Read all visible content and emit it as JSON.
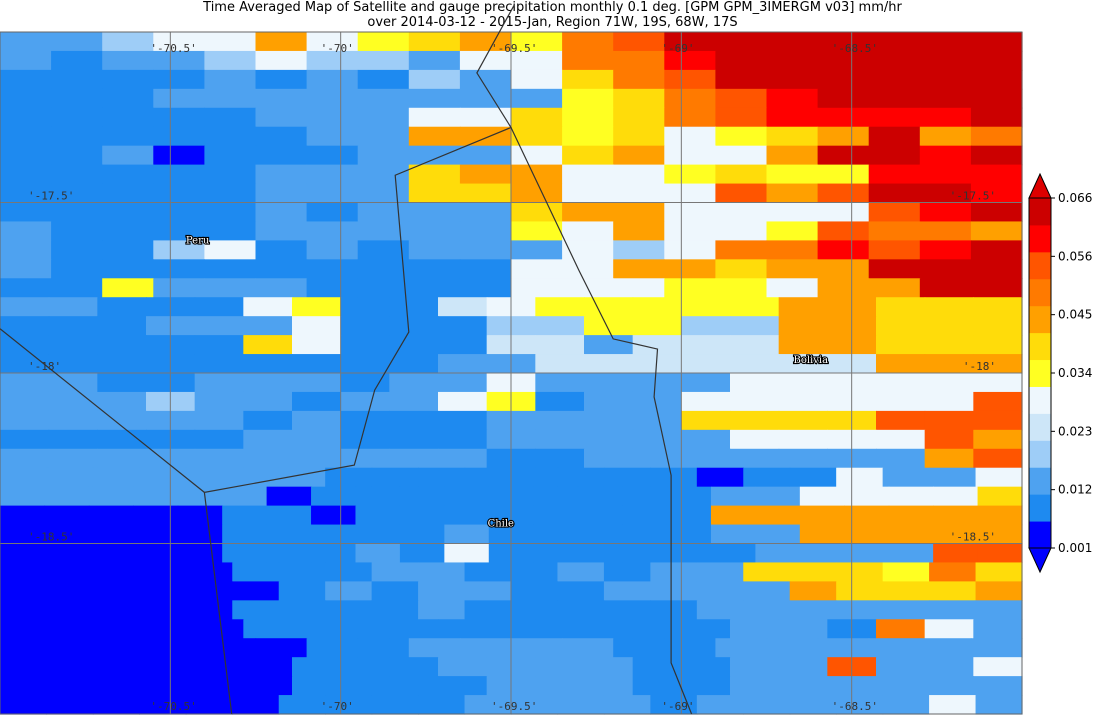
{
  "title_line1": "Time Averaged Map of Satellite and gauge precipitation monthly 0.1 deg. [GPM GPM_3IMERGM v03] mm/hr",
  "title_line2": "over 2014-03-12 - 2015-Jan, Region 71W, 19S, 68W, 17S",
  "map": {
    "extent": {
      "lon_min": -71.0,
      "lon_max": -68.0,
      "lat_min": -19.0,
      "lat_max": -17.0
    },
    "grid_lons": [
      -70.5,
      -70,
      -69.5,
      -69,
      -68.5
    ],
    "grid_lats": [
      -17.5,
      -18,
      -18.5
    ],
    "lon_labels": [
      "'-70.5'",
      "'-70'",
      "'-69.5'",
      "'-69'",
      "'-68.5'"
    ],
    "lat_labels": [
      "'-17.5'",
      "'-18'",
      "'-18.5'"
    ],
    "countries": [
      {
        "name": "Peru",
        "lon": -70.42,
        "lat": -17.62
      },
      {
        "name": "Bolivia",
        "lon": -68.62,
        "lat": -17.97
      },
      {
        "name": "Chile",
        "lon": -69.53,
        "lat": -18.45
      }
    ],
    "borders": [
      [
        [
          -69.49,
          -16.92
        ],
        [
          -69.6,
          -17.12
        ],
        [
          -69.5,
          -17.28
        ],
        [
          -69.84,
          -17.42
        ],
        [
          -69.8,
          -17.88
        ],
        [
          -69.9,
          -18.05
        ],
        [
          -69.96,
          -18.27
        ],
        [
          -70.4,
          -18.35
        ],
        [
          -70.32,
          -19.0
        ]
      ],
      [
        [
          -69.5,
          -17.28
        ],
        [
          -69.3,
          -17.7
        ],
        [
          -69.2,
          -17.9
        ],
        [
          -69.07,
          -17.93
        ],
        [
          -69.08,
          -18.07
        ],
        [
          -69.03,
          -18.3
        ],
        [
          -69.03,
          -18.85
        ],
        [
          -68.97,
          -19.0
        ]
      ],
      [
        [
          -71.0,
          -17.87
        ],
        [
          -70.4,
          -18.35
        ]
      ]
    ],
    "cell_deg": 0.1,
    "rows": [
      "334AA9AB89BEFHHIIIII",
      "32334A443AAEEGHJJJJH",
      "2222323243ACEFHKJKKJ",
      "22233333333BCEFGHKLH",
      "22222333AA8BCEFGGGGH",
      "2222223399878AB89I9E",
      "2231222333689AA9JJGI",
      "22222333899AABCBBGGG",
      "22222333889AAAFDFHHG",
      "2222232333899AAAAFGH",
      "3222233333BA96ABFEED",
      "3224A232333A46EEGFGI",
      "3222222222A699CDDHHH",
      "22B3332222666776DDHH",
      "33222A722567777799888",
      "222333622244774499888",
      "222228622255355599CCC",
      "222222222335555555999",
      "3322333233A3333666666",
      "33343323367233666666F",
      "333332322233338888FFF",
      "2222233222333336666F9",
      "33333333332233333339F",
      "3333333222222221226336",
      "33333312222222223366668",
      "11111221222222229999999",
      "11111222223222223399999",
      "1111122232A2222223333FF",
      "1111122233223233888BE8",
      "1111112323322333398889",
      "1111122223222223333333",
      "111112222222222332E63",
      "11111122333322333333",
      "11111122233332233F336",
      "111111222233322333333",
      "1111112222333323333363"
    ]
  },
  "colorbar": {
    "colors": [
      "#0000ff",
      "#1e8af0",
      "#4ea2f0",
      "#9ecdf7",
      "#cde6f8",
      "#eef7fd",
      "#ffff22",
      "#ffdc0a",
      "#ffa000",
      "#ff7a00",
      "#ff5500",
      "#ff0000",
      "#cc0000"
    ],
    "under_color": "#0000ff",
    "over_color": "#dd0000",
    "tick_labels": [
      "0.001",
      "0.012",
      "0.023",
      "0.034",
      "0.045",
      "0.056",
      "0.066"
    ]
  }
}
